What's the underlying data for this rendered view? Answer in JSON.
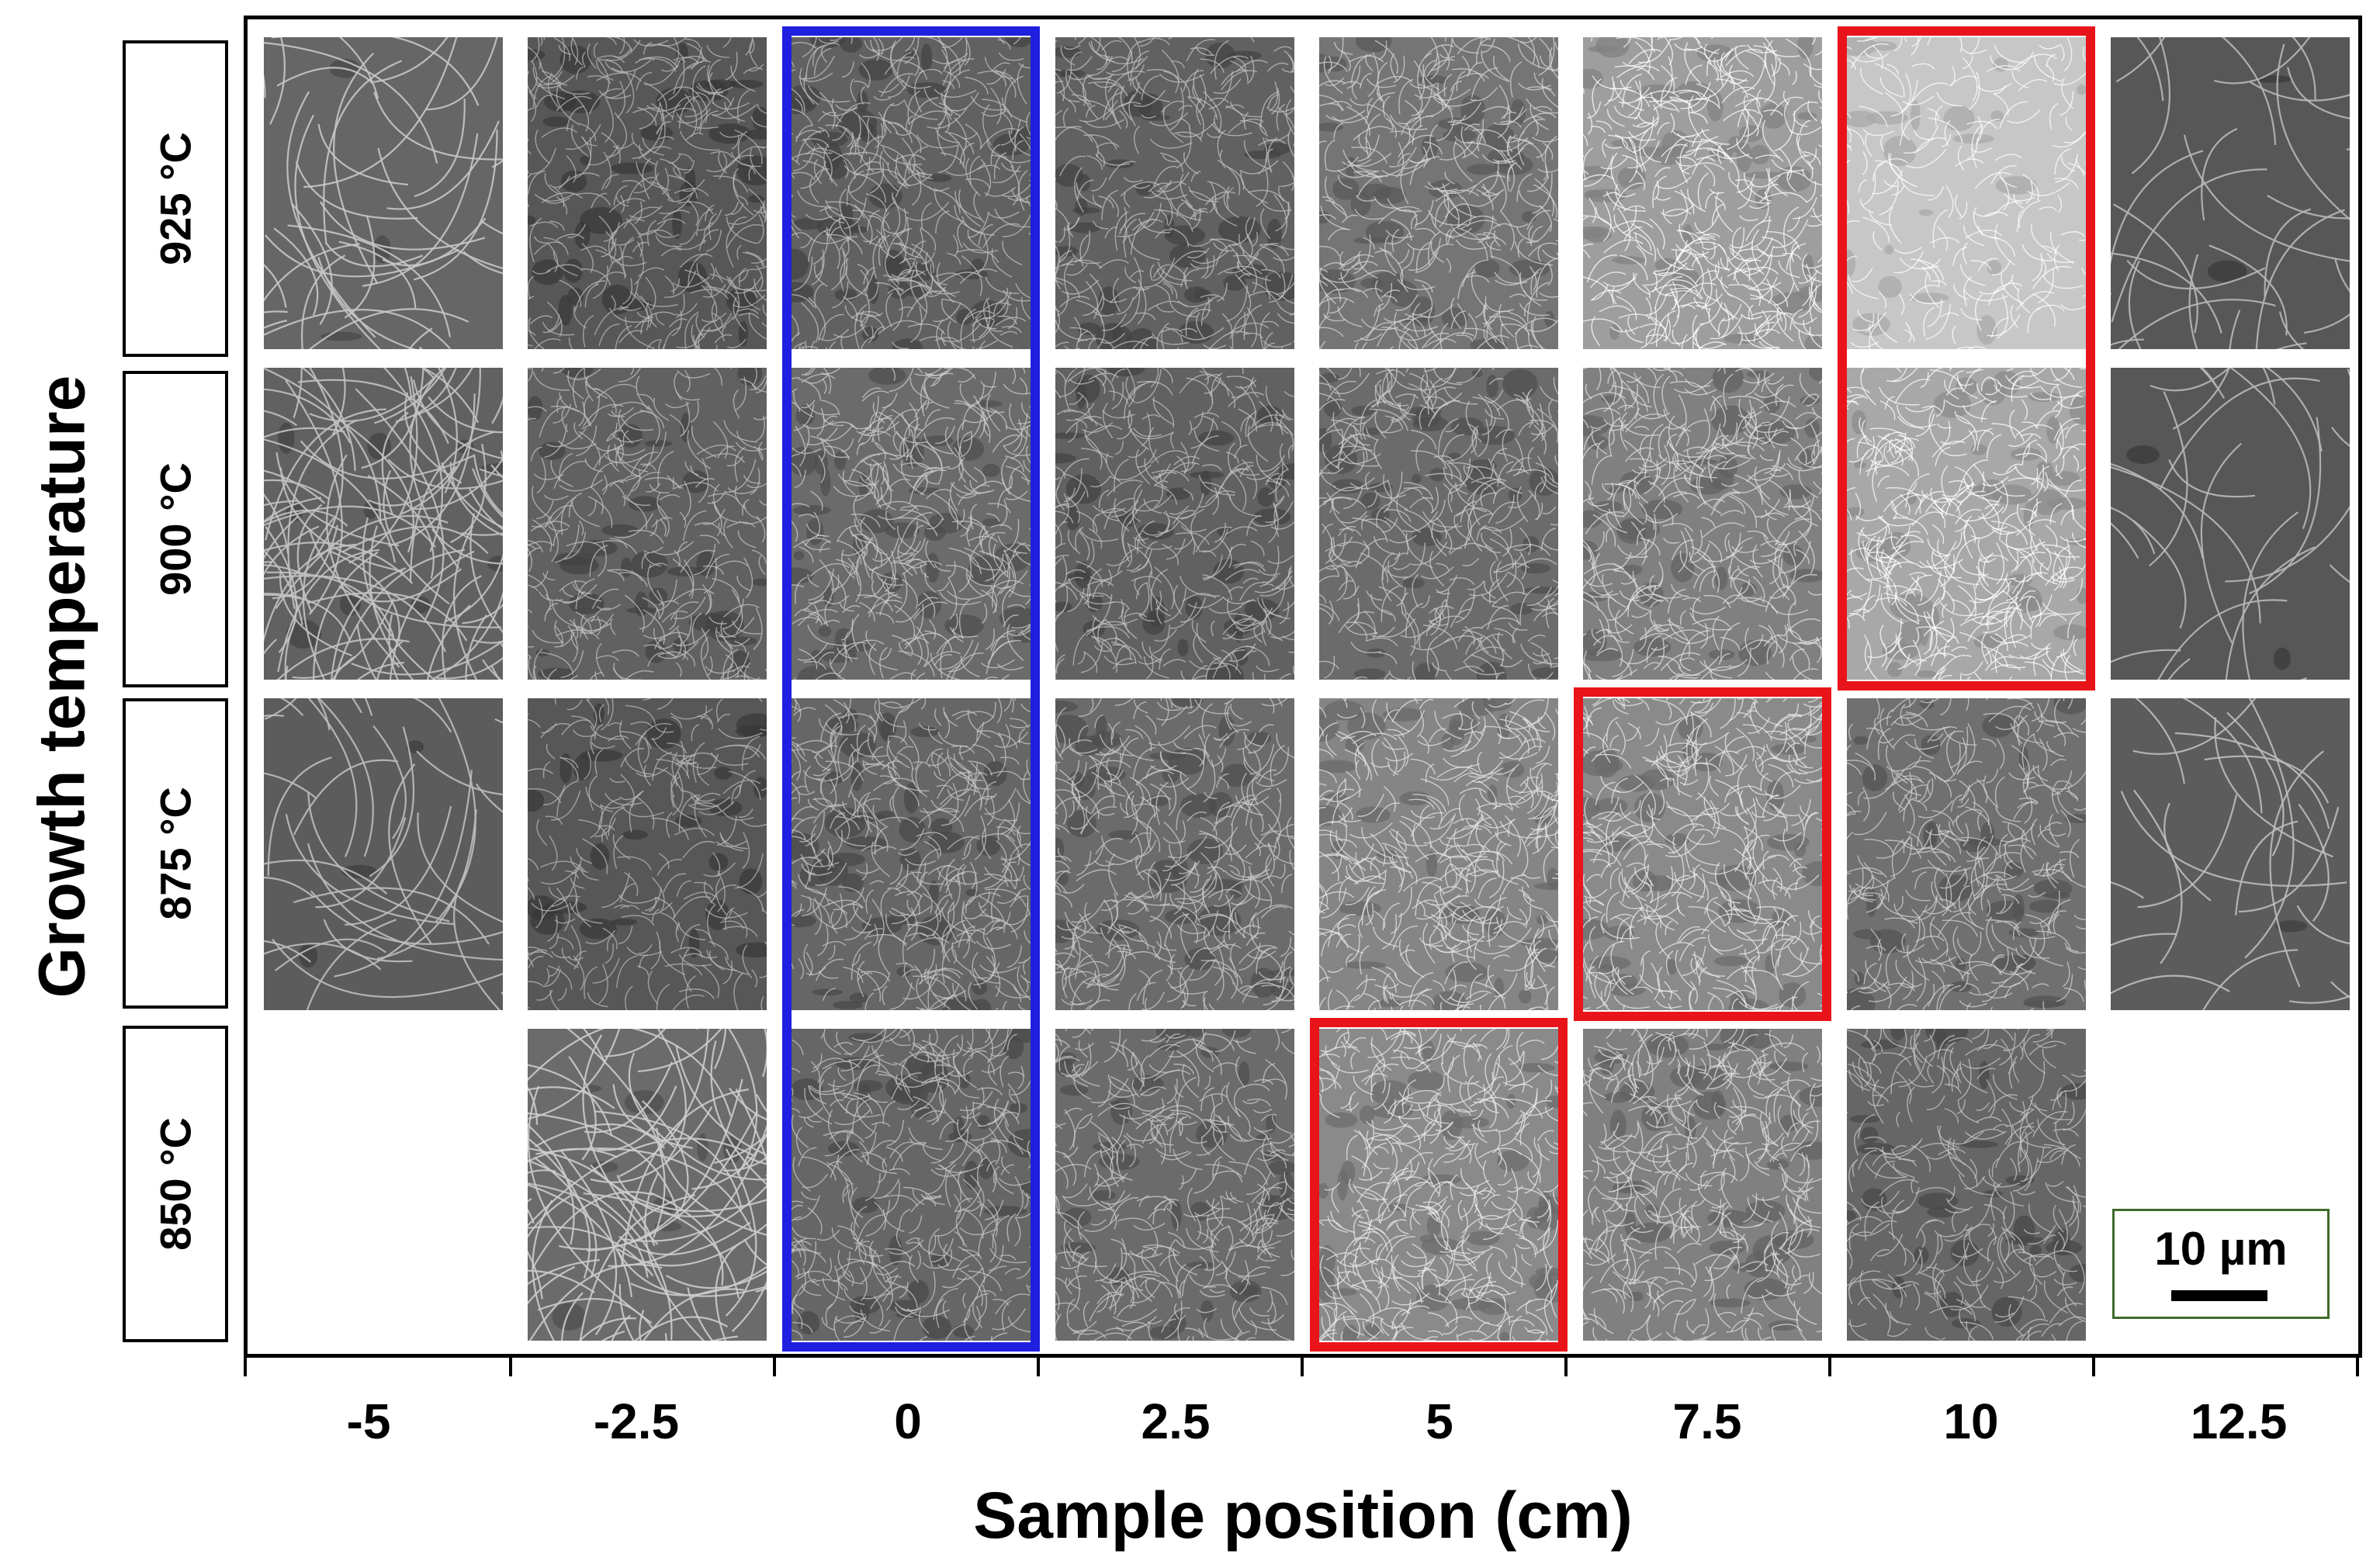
{
  "figure": {
    "y_axis_title": "Growth temperature",
    "x_axis_title": "Sample position (cm)",
    "x_tick_labels": [
      "-5",
      "-2.5",
      "0",
      "2.5",
      "5",
      "7.5",
      "10",
      "12.5"
    ],
    "row_labels": [
      "925 °C",
      "900 °C",
      "875 °C",
      "850 °C"
    ],
    "scale_bar": "10 µm",
    "rows": [
      {
        "temperature": "925 °C",
        "tiles": [
          {
            "position": "-5",
            "present": true,
            "tone": 0.4,
            "density": 0.08
          },
          {
            "position": "-2.5",
            "present": true,
            "tone": 0.34,
            "density": 0.85
          },
          {
            "position": "0",
            "present": true,
            "tone": 0.38,
            "density": 0.95
          },
          {
            "position": "2.5",
            "present": true,
            "tone": 0.38,
            "density": 0.85
          },
          {
            "position": "5",
            "present": true,
            "tone": 0.46,
            "density": 0.9
          },
          {
            "position": "7.5",
            "present": true,
            "tone": 0.62,
            "density": 0.95
          },
          {
            "position": "10",
            "present": true,
            "tone": 0.78,
            "density": 0.5
          },
          {
            "position": "12.5",
            "present": true,
            "tone": 0.34,
            "density": 0.05
          }
        ]
      },
      {
        "temperature": "900 °C",
        "tiles": [
          {
            "position": "-5",
            "present": true,
            "tone": 0.38,
            "density": 0.25
          },
          {
            "position": "-2.5",
            "present": true,
            "tone": 0.38,
            "density": 0.75
          },
          {
            "position": "0",
            "present": true,
            "tone": 0.42,
            "density": 0.95
          },
          {
            "position": "2.5",
            "present": true,
            "tone": 0.38,
            "density": 0.85
          },
          {
            "position": "5",
            "present": true,
            "tone": 0.42,
            "density": 0.9
          },
          {
            "position": "7.5",
            "present": true,
            "tone": 0.5,
            "density": 0.95
          },
          {
            "position": "10",
            "present": true,
            "tone": 0.66,
            "density": 0.95
          },
          {
            "position": "12.5",
            "present": true,
            "tone": 0.34,
            "density": 0.04
          }
        ]
      },
      {
        "temperature": "875 °C",
        "tiles": [
          {
            "position": "-5",
            "present": true,
            "tone": 0.36,
            "density": 0.07
          },
          {
            "position": "-2.5",
            "present": true,
            "tone": 0.34,
            "density": 0.6
          },
          {
            "position": "0",
            "present": true,
            "tone": 0.4,
            "density": 0.95
          },
          {
            "position": "2.5",
            "present": true,
            "tone": 0.42,
            "density": 0.9
          },
          {
            "position": "5",
            "present": true,
            "tone": 0.52,
            "density": 0.95
          },
          {
            "position": "7.5",
            "present": true,
            "tone": 0.54,
            "density": 0.95
          },
          {
            "position": "10",
            "present": true,
            "tone": 0.44,
            "density": 0.8
          },
          {
            "position": "12.5",
            "present": true,
            "tone": 0.36,
            "density": 0.03
          }
        ]
      },
      {
        "temperature": "850 °C",
        "tiles": [
          {
            "position": "-5",
            "present": false
          },
          {
            "position": "-2.5",
            "present": true,
            "tone": 0.42,
            "density": 0.2
          },
          {
            "position": "0",
            "present": true,
            "tone": 0.4,
            "density": 0.85
          },
          {
            "position": "2.5",
            "present": true,
            "tone": 0.42,
            "density": 0.85
          },
          {
            "position": "5",
            "present": true,
            "tone": 0.54,
            "density": 0.95
          },
          {
            "position": "7.5",
            "present": true,
            "tone": 0.5,
            "density": 0.9
          },
          {
            "position": "10",
            "present": true,
            "tone": 0.4,
            "density": 0.7
          },
          {
            "position": "12.5",
            "present": false
          }
        ]
      }
    ],
    "highlight_colors": {
      "blue": "#1f1fe0",
      "red": "#e8141a"
    },
    "highlights": [
      {
        "color": "blue",
        "column": "0",
        "rows": [
          "925 °C",
          "850 °C"
        ]
      },
      {
        "color": "red",
        "column": "10",
        "rows": [
          "925 °C",
          "900 °C"
        ]
      },
      {
        "color": "red",
        "column": "7.5",
        "rows": [
          "875 °C"
        ]
      },
      {
        "color": "red",
        "column": "5",
        "rows": [
          "850 °C"
        ]
      }
    ]
  }
}
